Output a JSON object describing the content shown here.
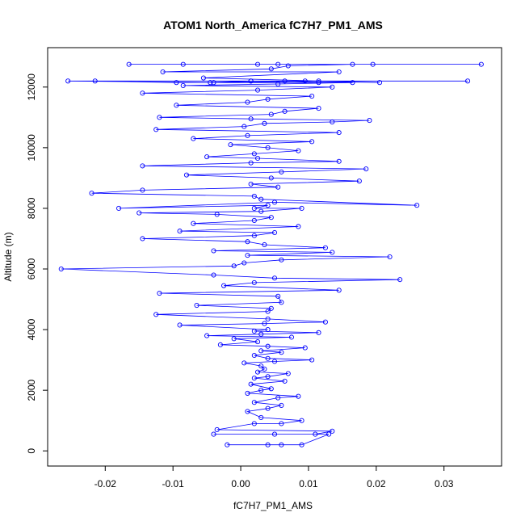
{
  "chart_data": {
    "type": "scatter",
    "title": "ATOM1 North_America fC7H7_PM1_AMS",
    "xlabel": "fC7H7_PM1_AMS",
    "ylabel": "Altitude (m)",
    "xlim": [
      -0.0285,
      0.0385
    ],
    "ylim": [
      -500,
      13300
    ],
    "x_ticks": [
      -0.02,
      -0.01,
      0.0,
      0.01,
      0.02,
      0.03
    ],
    "x_tick_labels": [
      "-0.02",
      "-0.01",
      "0.00",
      "0.01",
      "0.02",
      "0.03"
    ],
    "y_ticks": [
      0,
      2000,
      4000,
      6000,
      8000,
      10000,
      12000
    ],
    "y_tick_labels": [
      "0",
      "2000",
      "4000",
      "6000",
      "8000",
      "10000",
      "12000"
    ],
    "grid": false,
    "legend": "none",
    "marker": "open circle",
    "connected_by_lines": true,
    "color": "#0000ff",
    "series": [
      {
        "x": [
          0.004,
          -0.002,
          0.006,
          0.009,
          0.013,
          -0.004,
          0.005,
          0.011,
          0.0135,
          -0.0035,
          0.002,
          0.006,
          0.009,
          0.003,
          0.001,
          0.004,
          0.006,
          0.002,
          0.0055,
          0.0085,
          0.001,
          0.003,
          0.0045,
          0.0015,
          0.0065,
          0.002,
          0.004,
          0.007,
          0.0025,
          0.0035,
          0.003,
          0.0005,
          0.005,
          0.0105,
          0.004,
          0.002,
          0.006,
          0.003,
          0.0095,
          0.004,
          -0.003,
          0.0025,
          -0.001,
          0.0075,
          -0.005,
          0.003,
          0.0115,
          0.002,
          0.004,
          -0.009,
          0.0035,
          0.0125,
          0.004,
          -0.0125,
          0.004,
          0.0045,
          -0.0065,
          0.006,
          0.0055,
          -0.012,
          0.0145,
          -0.0025,
          0.002,
          0.0235,
          0.005,
          -0.004,
          -0.0265,
          -0.001,
          0.0005,
          0.006,
          0.022,
          0.001,
          0.0135,
          -0.004,
          0.0125,
          0.0035,
          0.001,
          -0.0145,
          0.002,
          0.005,
          -0.009,
          0.0085,
          -0.007,
          0.002,
          0.0045,
          -0.0035,
          -0.015,
          0.003,
          0.009,
          0.002,
          0.004,
          -0.018,
          0.005,
          0.026,
          0.003,
          0.002,
          -0.022,
          -0.0145,
          0.0055,
          0.0015,
          0.0175,
          0.0045,
          -0.008,
          0.006,
          0.0185,
          -0.0145,
          0.0015,
          0.0145,
          0.0025,
          -0.005,
          0.002,
          0.0085,
          0.004,
          -0.0015,
          0.0105,
          -0.007,
          0.001,
          0.0145,
          -0.0125,
          0.0005,
          0.0035,
          0.0135,
          0.019,
          0.0015,
          -0.012,
          0.0045,
          0.0065,
          0.0115,
          -0.0095,
          0.001,
          0.004,
          0.0105,
          -0.0145,
          0.0025,
          0.0135,
          -0.0085,
          0.0055,
          0.0165,
          -0.0095,
          -0.0215,
          0.0015,
          0.0065,
          0.0115,
          -0.004,
          0.0115,
          0.0335,
          -0.0255,
          -0.0045,
          0.0015,
          0.0095,
          0.0205,
          -0.0055,
          0.0145,
          -0.0115,
          0.0045,
          0.007,
          0.0165,
          -0.0085,
          0.0055,
          0.0355,
          -0.0165,
          0.0025,
          0.0195
        ],
        "y": [
          200,
          200,
          200,
          200,
          550,
          550,
          550,
          550,
          650,
          700,
          900,
          900,
          1000,
          1100,
          1300,
          1400,
          1500,
          1600,
          1750,
          1800,
          1900,
          2000,
          2050,
          2200,
          2300,
          2400,
          2450,
          2550,
          2600,
          2700,
          2800,
          2900,
          2950,
          3000,
          3050,
          3150,
          3250,
          3300,
          3400,
          3450,
          3500,
          3600,
          3700,
          3750,
          3800,
          3850,
          3900,
          3950,
          4000,
          4150,
          4200,
          4250,
          4350,
          4500,
          4600,
          4700,
          4800,
          4900,
          5100,
          5200,
          5300,
          5450,
          5550,
          5650,
          5700,
          5800,
          6000,
          6100,
          6200,
          6300,
          6400,
          6450,
          6550,
          6600,
          6700,
          6800,
          6900,
          7000,
          7100,
          7200,
          7250,
          7400,
          7500,
          7600,
          7700,
          7800,
          7850,
          7900,
          8000,
          8000,
          8100,
          8000,
          8200,
          8100,
          8300,
          8400,
          8500,
          8600,
          8700,
          8800,
          8900,
          9000,
          9100,
          9200,
          9300,
          9400,
          9500,
          9550,
          9650,
          9700,
          9800,
          9900,
          10000,
          10100,
          10200,
          10300,
          10400,
          10500,
          10600,
          10700,
          10800,
          10850,
          10900,
          10950,
          11000,
          11100,
          11200,
          11300,
          11400,
          11500,
          11600,
          11700,
          11800,
          11900,
          12000,
          12050,
          12100,
          12150,
          12150,
          12200,
          12200,
          12200,
          12150,
          12150,
          12200,
          12200,
          12200,
          12150,
          12200,
          12200,
          12150,
          12300,
          12500,
          12500,
          12600,
          12700,
          12750,
          12750,
          12750,
          12750,
          12750,
          12750,
          12750
        ]
      }
    ]
  }
}
